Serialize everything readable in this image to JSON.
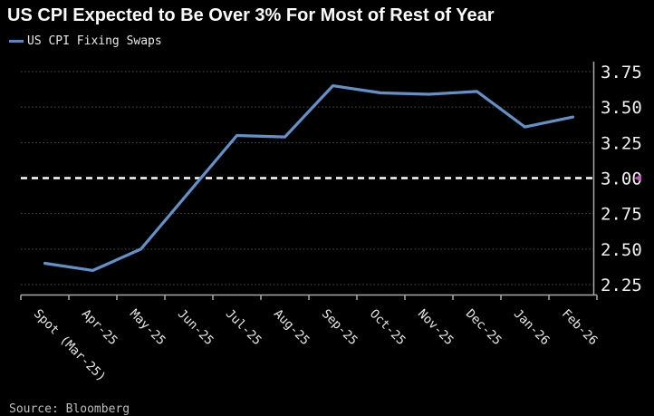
{
  "title": "US CPI Expected to Be Over 3% For Most of Rest of Year",
  "legend": {
    "label": "US CPI Fixing Swaps",
    "color": "#5c86c0"
  },
  "footer": {
    "source_label": "Source: Bloomberg"
  },
  "colors": {
    "background": "#000000",
    "series_line": "#6490c8",
    "grid_line": "#9a9484",
    "reference_line": "#ffffff",
    "axis_line": "#a9a9a9",
    "tick_label": "#f0f0f0",
    "last_price_marker": "#c457b8"
  },
  "chart_data": {
    "type": "line",
    "title": "US CPI Expected to Be Over 3% For Most of Rest of Year",
    "categories": [
      "Spot (Mar-25)",
      "Apr-25",
      "May-25",
      "Jun-25",
      "Jul-25",
      "Aug-25",
      "Sep-25",
      "Oct-25",
      "Nov-25",
      "Dec-25",
      "Jan-26",
      "Feb-26"
    ],
    "series": [
      {
        "name": "US CPI Fixing Swaps",
        "color": "#6490c8",
        "values": [
          2.4,
          2.35,
          2.5,
          2.9,
          3.3,
          3.29,
          3.65,
          3.6,
          3.59,
          3.61,
          3.36,
          3.43
        ]
      }
    ],
    "xlabel": "",
    "ylabel": "",
    "y_ticks": [
      2.25,
      2.5,
      2.75,
      3.0,
      3.25,
      3.5,
      3.75
    ],
    "ylim": [
      2.18,
      3.82
    ],
    "y_axis_side": "right",
    "grid": true,
    "grid_style": "dotted",
    "reference_line": {
      "value": 3.0,
      "style": "dashed",
      "color": "#ffffff"
    },
    "last_price_marker": {
      "value": 3.0,
      "color": "#c457b8"
    },
    "legend_position": "top-left"
  }
}
